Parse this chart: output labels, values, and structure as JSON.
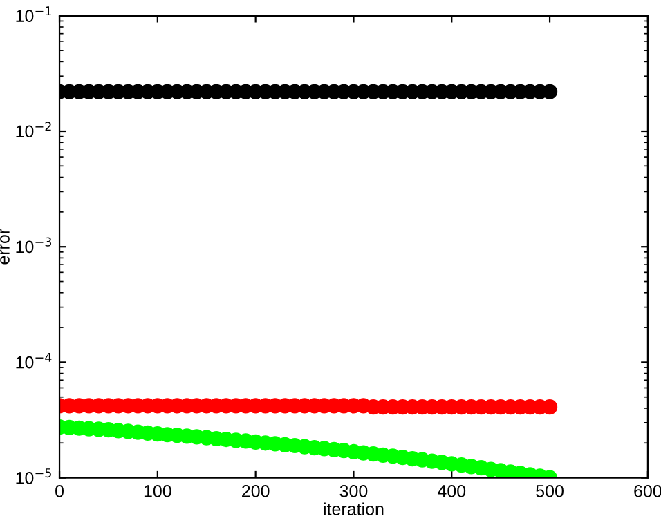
{
  "chart_data": {
    "type": "scatter",
    "xlabel": "iteration",
    "ylabel": "error",
    "log": "y",
    "marker": "circle",
    "grid": false,
    "legend": false,
    "x": [
      0,
      10,
      20,
      30,
      40,
      50,
      60,
      70,
      80,
      90,
      100,
      110,
      120,
      130,
      140,
      150,
      160,
      170,
      180,
      190,
      200,
      210,
      220,
      230,
      240,
      250,
      260,
      270,
      280,
      290,
      300,
      310,
      320,
      330,
      340,
      350,
      360,
      370,
      380,
      390,
      400,
      410,
      420,
      430,
      440,
      450,
      460,
      470,
      480,
      490,
      500
    ],
    "series": [
      {
        "color": "#000000",
        "values": [
          0.022,
          0.022,
          0.022,
          0.022,
          0.022,
          0.022,
          0.022,
          0.022,
          0.022,
          0.022,
          0.022,
          0.022,
          0.022,
          0.022,
          0.022,
          0.022,
          0.022,
          0.022,
          0.022,
          0.022,
          0.022,
          0.022,
          0.022,
          0.022,
          0.022,
          0.022,
          0.022,
          0.022,
          0.022,
          0.022,
          0.022,
          0.022,
          0.022,
          0.022,
          0.022,
          0.022,
          0.022,
          0.022,
          0.022,
          0.022,
          0.022,
          0.022,
          0.022,
          0.022,
          0.022,
          0.022,
          0.022,
          0.022,
          0.022,
          0.022,
          0.022
        ]
      },
      {
        "color": "#ff0000",
        "values": [
          4.2e-05,
          4.2e-05,
          4.2e-05,
          4.2e-05,
          4.2e-05,
          4.2e-05,
          4.2e-05,
          4.2e-05,
          4.2e-05,
          4.2e-05,
          4.2e-05,
          4.2e-05,
          4.2e-05,
          4.2e-05,
          4.2e-05,
          4.2e-05,
          4.2e-05,
          4.2e-05,
          4.2e-05,
          4.2e-05,
          4.2e-05,
          4.2e-05,
          4.2e-05,
          4.2e-05,
          4.2e-05,
          4.2e-05,
          4.2e-05,
          4.2e-05,
          4.2e-05,
          4.2e-05,
          4.2e-05,
          4.2e-05,
          4.1e-05,
          4.1e-05,
          4.1e-05,
          4.1e-05,
          4.1e-05,
          4.1e-05,
          4.1e-05,
          4.1e-05,
          4.1e-05,
          4.1e-05,
          4.1e-05,
          4.1e-05,
          4.1e-05,
          4.1e-05,
          4.1e-05,
          4.1e-05,
          4.1e-05,
          4.1e-05,
          4.1e-05
        ]
      },
      {
        "color": "#00ff00",
        "values": [
          2.75e-05,
          2.72e-05,
          2.69e-05,
          2.66e-05,
          2.63e-05,
          2.6e-05,
          2.56e-05,
          2.52e-05,
          2.48e-05,
          2.44e-05,
          2.4e-05,
          2.36e-05,
          2.33e-05,
          2.29e-05,
          2.26e-05,
          2.22e-05,
          2.18e-05,
          2.15e-05,
          2.11e-05,
          2.08e-05,
          2.04e-05,
          2e-05,
          1.97e-05,
          1.93e-05,
          1.9e-05,
          1.86e-05,
          1.82e-05,
          1.79e-05,
          1.75e-05,
          1.72e-05,
          1.68e-05,
          1.64e-05,
          1.61e-05,
          1.57e-05,
          1.54e-05,
          1.5e-05,
          1.46e-05,
          1.43e-05,
          1.39e-05,
          1.36e-05,
          1.32e-05,
          1.29e-05,
          1.25e-05,
          1.22e-05,
          1.18e-05,
          1.15e-05,
          1.12e-05,
          1.09e-05,
          1.06e-05,
          1.03e-05,
          1e-05
        ]
      }
    ],
    "xlim": [
      0,
      600
    ],
    "xticks": [
      0,
      100,
      200,
      300,
      400,
      500,
      600
    ],
    "ylim": [
      1e-05,
      0.1
    ],
    "yticks": [
      {
        "value": 1e-05,
        "label": "10$^{−5}$"
      },
      {
        "value": 0.0001,
        "label": "10$^{−4}$"
      },
      {
        "value": 0.001,
        "label": "10$^{−3}$"
      },
      {
        "value": 0.01,
        "label": "10$^{−2}$"
      },
      {
        "value": 0.1,
        "label": "10$^{−1}$"
      }
    ]
  }
}
